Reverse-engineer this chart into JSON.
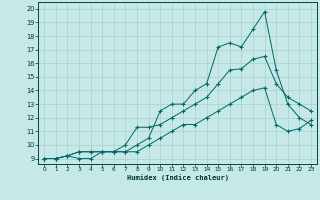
{
  "xlabel": "Humidex (Indice chaleur)",
  "bg_color": "#c6e8e6",
  "grid_color": "#a8d0ce",
  "line_color": "#006868",
  "xlim_min": -0.5,
  "xlim_max": 23.5,
  "ylim_min": 8.6,
  "ylim_max": 20.5,
  "xticks": [
    0,
    1,
    2,
    3,
    4,
    5,
    6,
    7,
    8,
    9,
    10,
    11,
    12,
    13,
    14,
    15,
    16,
    17,
    18,
    19,
    20,
    21,
    22,
    23
  ],
  "yticks": [
    9,
    10,
    11,
    12,
    13,
    14,
    15,
    16,
    17,
    18,
    19,
    20
  ],
  "line_top_x": [
    0,
    1,
    2,
    3,
    4,
    5,
    6,
    7,
    8,
    9,
    10,
    11,
    12,
    13,
    14,
    15,
    16,
    17,
    18,
    19,
    20,
    21,
    22,
    23
  ],
  "line_top_y": [
    9,
    9,
    9.2,
    9.5,
    9.5,
    9.5,
    9.5,
    9.5,
    10,
    10.5,
    12.5,
    13,
    13,
    14,
    14.5,
    17.2,
    17.5,
    17.2,
    18.5,
    19.8,
    15.5,
    13,
    12,
    11.5
  ],
  "line_mid_x": [
    0,
    1,
    2,
    3,
    4,
    5,
    6,
    7,
    8,
    9,
    10,
    11,
    12,
    13,
    14,
    15,
    16,
    17,
    18,
    19,
    20,
    21,
    22,
    23
  ],
  "line_mid_y": [
    9,
    9,
    9.2,
    9.5,
    9.5,
    9.5,
    9.5,
    10.0,
    11.3,
    11.3,
    11.5,
    12.0,
    12.5,
    13.0,
    13.5,
    14.5,
    15.5,
    15.6,
    16.3,
    16.5,
    14.5,
    13.5,
    13.0,
    12.5
  ],
  "line_bot_x": [
    0,
    1,
    2,
    3,
    4,
    5,
    6,
    7,
    8,
    9,
    10,
    11,
    12,
    13,
    14,
    15,
    16,
    17,
    18,
    19,
    20,
    21,
    22,
    23
  ],
  "line_bot_y": [
    9,
    9,
    9.2,
    9.0,
    9.0,
    9.5,
    9.5,
    9.5,
    9.5,
    10,
    10.5,
    11,
    11.5,
    11.5,
    12,
    12.5,
    13,
    13.5,
    14,
    14.2,
    11.5,
    11,
    11.2,
    11.8
  ]
}
